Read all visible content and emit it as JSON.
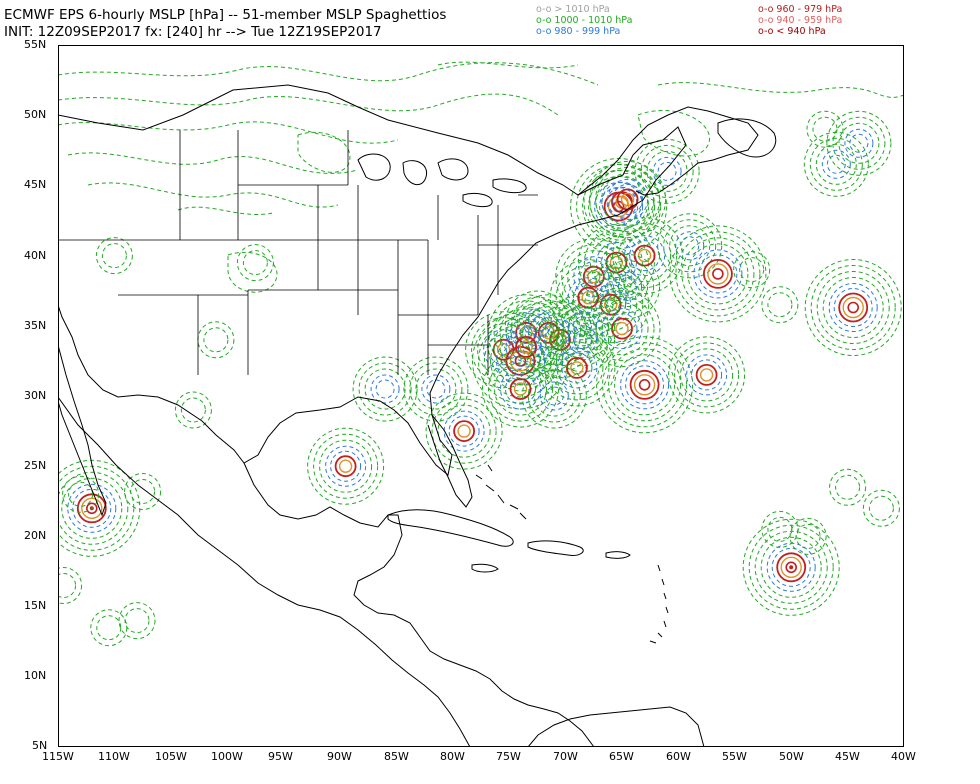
{
  "header": {
    "title_line1": "ECMWF EPS 6-hourly MSLP [hPa] -- 51-member MSLP Spaghettios",
    "title_line2": "INIT: 12Z09SEP2017 fx: [240] hr --> Tue 12Z19SEP2017"
  },
  "legend": {
    "left": [
      {
        "text": "o-o > 1010 hPa",
        "color": "#a0a0a0"
      },
      {
        "text": "o-o 1000 - 1010 hPa",
        "color": "#22aa22"
      },
      {
        "text": "o-o 980 - 999 hPa",
        "color": "#2b7bd8"
      }
    ],
    "right": [
      {
        "text": "o-o 960 - 979 hPa",
        "color": "#b02020"
      },
      {
        "text": "o-o 940 - 959 hPa",
        "color": "#e06060"
      },
      {
        "text": "o-o < 940 hPa",
        "color": "#a00000"
      }
    ]
  },
  "axes": {
    "lat_labels": [
      "55N",
      "50N",
      "45N",
      "40N",
      "35N",
      "30N",
      "25N",
      "20N",
      "15N",
      "10N",
      "5N"
    ],
    "lon_labels": [
      "115W",
      "110W",
      "105W",
      "100W",
      "95W",
      "90W",
      "85W",
      "80W",
      "75W",
      "70W",
      "65W",
      "60W",
      "55W",
      "50W",
      "45W",
      "40W"
    ]
  },
  "colors": {
    "green": "#22aa22",
    "blue": "#2b7bd8",
    "red": "#c02020",
    "orange": "#e0902a",
    "land": "#000000"
  },
  "centers": [
    {
      "lon": -65.3,
      "lat": 43.5,
      "p": 965
    },
    {
      "lon": -65.0,
      "lat": 43.8,
      "p": 975
    },
    {
      "lon": -64.5,
      "lat": 44.0,
      "p": 985
    },
    {
      "lon": -61.0,
      "lat": 46.0,
      "p": 995
    },
    {
      "lon": -65.5,
      "lat": 39.5,
      "p": 975
    },
    {
      "lon": -63.0,
      "lat": 40.0,
      "p": 980
    },
    {
      "lon": -67.5,
      "lat": 38.5,
      "p": 985
    },
    {
      "lon": -59.0,
      "lat": 40.7,
      "p": 990
    },
    {
      "lon": -56.5,
      "lat": 38.7,
      "p": 965
    },
    {
      "lon": -66.0,
      "lat": 36.5,
      "p": 975
    },
    {
      "lon": -68.0,
      "lat": 37.0,
      "p": 985
    },
    {
      "lon": -64.5,
      "lat": 37.8,
      "p": 995
    },
    {
      "lon": -65.0,
      "lat": 34.8,
      "p": 975
    },
    {
      "lon": -68.5,
      "lat": 35.0,
      "p": 990
    },
    {
      "lon": -70.5,
      "lat": 34.0,
      "p": 970
    },
    {
      "lon": -71.5,
      "lat": 34.5,
      "p": 980
    },
    {
      "lon": -73.5,
      "lat": 34.5,
      "p": 975
    },
    {
      "lon": -72.5,
      "lat": 35.2,
      "p": 990
    },
    {
      "lon": -75.5,
      "lat": 33.3,
      "p": 980
    },
    {
      "lon": -74.0,
      "lat": 32.5,
      "p": 965
    },
    {
      "lon": -73.5,
      "lat": 33.5,
      "p": 985
    },
    {
      "lon": -68.5,
      "lat": 34.0,
      "p": 990
    },
    {
      "lon": -69.0,
      "lat": 32.0,
      "p": 975
    },
    {
      "lon": -74.0,
      "lat": 30.5,
      "p": 970
    },
    {
      "lon": -71.0,
      "lat": 30.0,
      "p": 990
    },
    {
      "lon": -63.0,
      "lat": 30.8,
      "p": 965
    },
    {
      "lon": -57.5,
      "lat": 31.5,
      "p": 975
    },
    {
      "lon": -79.0,
      "lat": 27.5,
      "p": 975
    },
    {
      "lon": -89.5,
      "lat": 25.0,
      "p": 970
    },
    {
      "lon": -112.0,
      "lat": 22.0,
      "p": 945
    },
    {
      "lon": -50.0,
      "lat": 17.8,
      "p": 945
    },
    {
      "lon": -44.5,
      "lat": 36.3,
      "p": 950
    },
    {
      "lon": -81.5,
      "lat": 30.5,
      "p": 1000
    },
    {
      "lon": -86.0,
      "lat": 30.5,
      "p": 1002
    },
    {
      "lon": -48.5,
      "lat": 20.0,
      "p": 1005
    },
    {
      "lon": -51.0,
      "lat": 36.5,
      "p": 1005
    },
    {
      "lon": -53.5,
      "lat": 39.0,
      "p": 1005
    },
    {
      "lon": -46.0,
      "lat": 46.5,
      "p": 995
    },
    {
      "lon": -44.0,
      "lat": 48.0,
      "p": 1000
    },
    {
      "lon": -47.0,
      "lat": 49.0,
      "p": 1005
    },
    {
      "lon": -103.0,
      "lat": 29.0,
      "p": 1005
    },
    {
      "lon": -113.0,
      "lat": 23.0,
      "p": 1006
    },
    {
      "lon": -107.5,
      "lat": 23.2,
      "p": 1006
    },
    {
      "lon": -114.5,
      "lat": 16.5,
      "p": 1007
    },
    {
      "lon": -110.5,
      "lat": 13.5,
      "p": 1007
    },
    {
      "lon": -108.0,
      "lat": 14.0,
      "p": 1008
    },
    {
      "lon": -45.0,
      "lat": 23.5,
      "p": 1007
    },
    {
      "lon": -42.0,
      "lat": 22.0,
      "p": 1008
    },
    {
      "lon": -51.0,
      "lat": 20.5,
      "p": 1008
    },
    {
      "lon": -110.0,
      "lat": 40.0,
      "p": 1008
    },
    {
      "lon": -97.5,
      "lat": 39.5,
      "p": 1008
    },
    {
      "lon": -101.0,
      "lat": 34.0,
      "p": 1008
    }
  ]
}
